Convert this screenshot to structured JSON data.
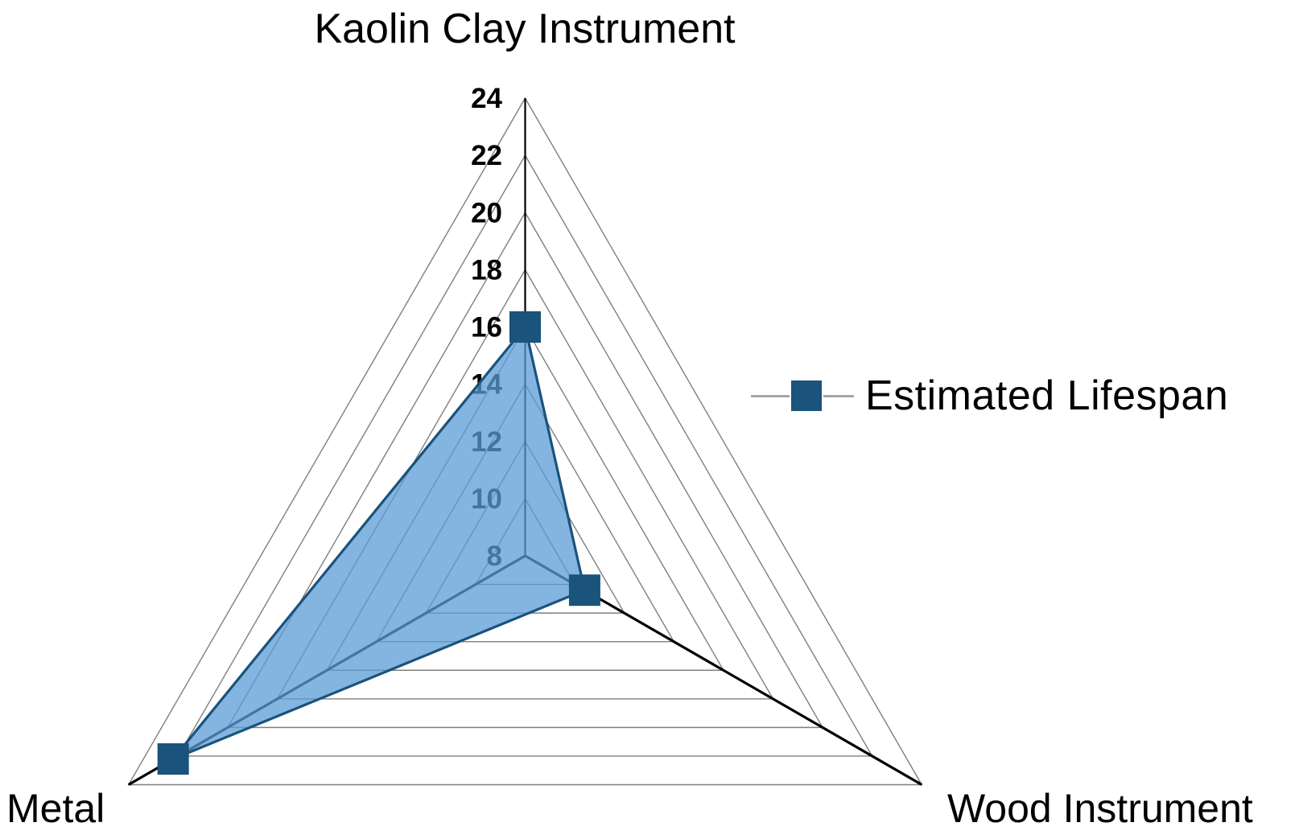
{
  "chart_data": {
    "type": "radar",
    "categories": [
      "Kaolin Clay Instrument",
      "Wood Instrument",
      "Metal"
    ],
    "series": [
      {
        "name": "Estimated Lifespan",
        "values": [
          16,
          10.4,
          22.2
        ],
        "marker": "square"
      }
    ],
    "axis": {
      "min": 8,
      "max": 24,
      "step": 2,
      "tick_labels": [
        "8",
        "10",
        "12",
        "14",
        "16",
        "18",
        "20",
        "22",
        "24"
      ]
    },
    "legend": {
      "position": "right",
      "entries": [
        "Estimated Lifespan"
      ]
    },
    "grid": true,
    "layout_hints": {
      "start_axis": "top",
      "direction": "clockwise",
      "tick_labels_on": "top-spoke"
    },
    "colors": {
      "series_fill": "#5B9BD5",
      "series_fill_opacity": 0.75,
      "series_line": "#1A537C",
      "grid_line": "#7F7F7F",
      "spoke_line": "#000000",
      "tick_text": "#000000",
      "label_text": "#000000",
      "legend_line": "#A6A6A6",
      "background": "#FFFFFF"
    }
  }
}
